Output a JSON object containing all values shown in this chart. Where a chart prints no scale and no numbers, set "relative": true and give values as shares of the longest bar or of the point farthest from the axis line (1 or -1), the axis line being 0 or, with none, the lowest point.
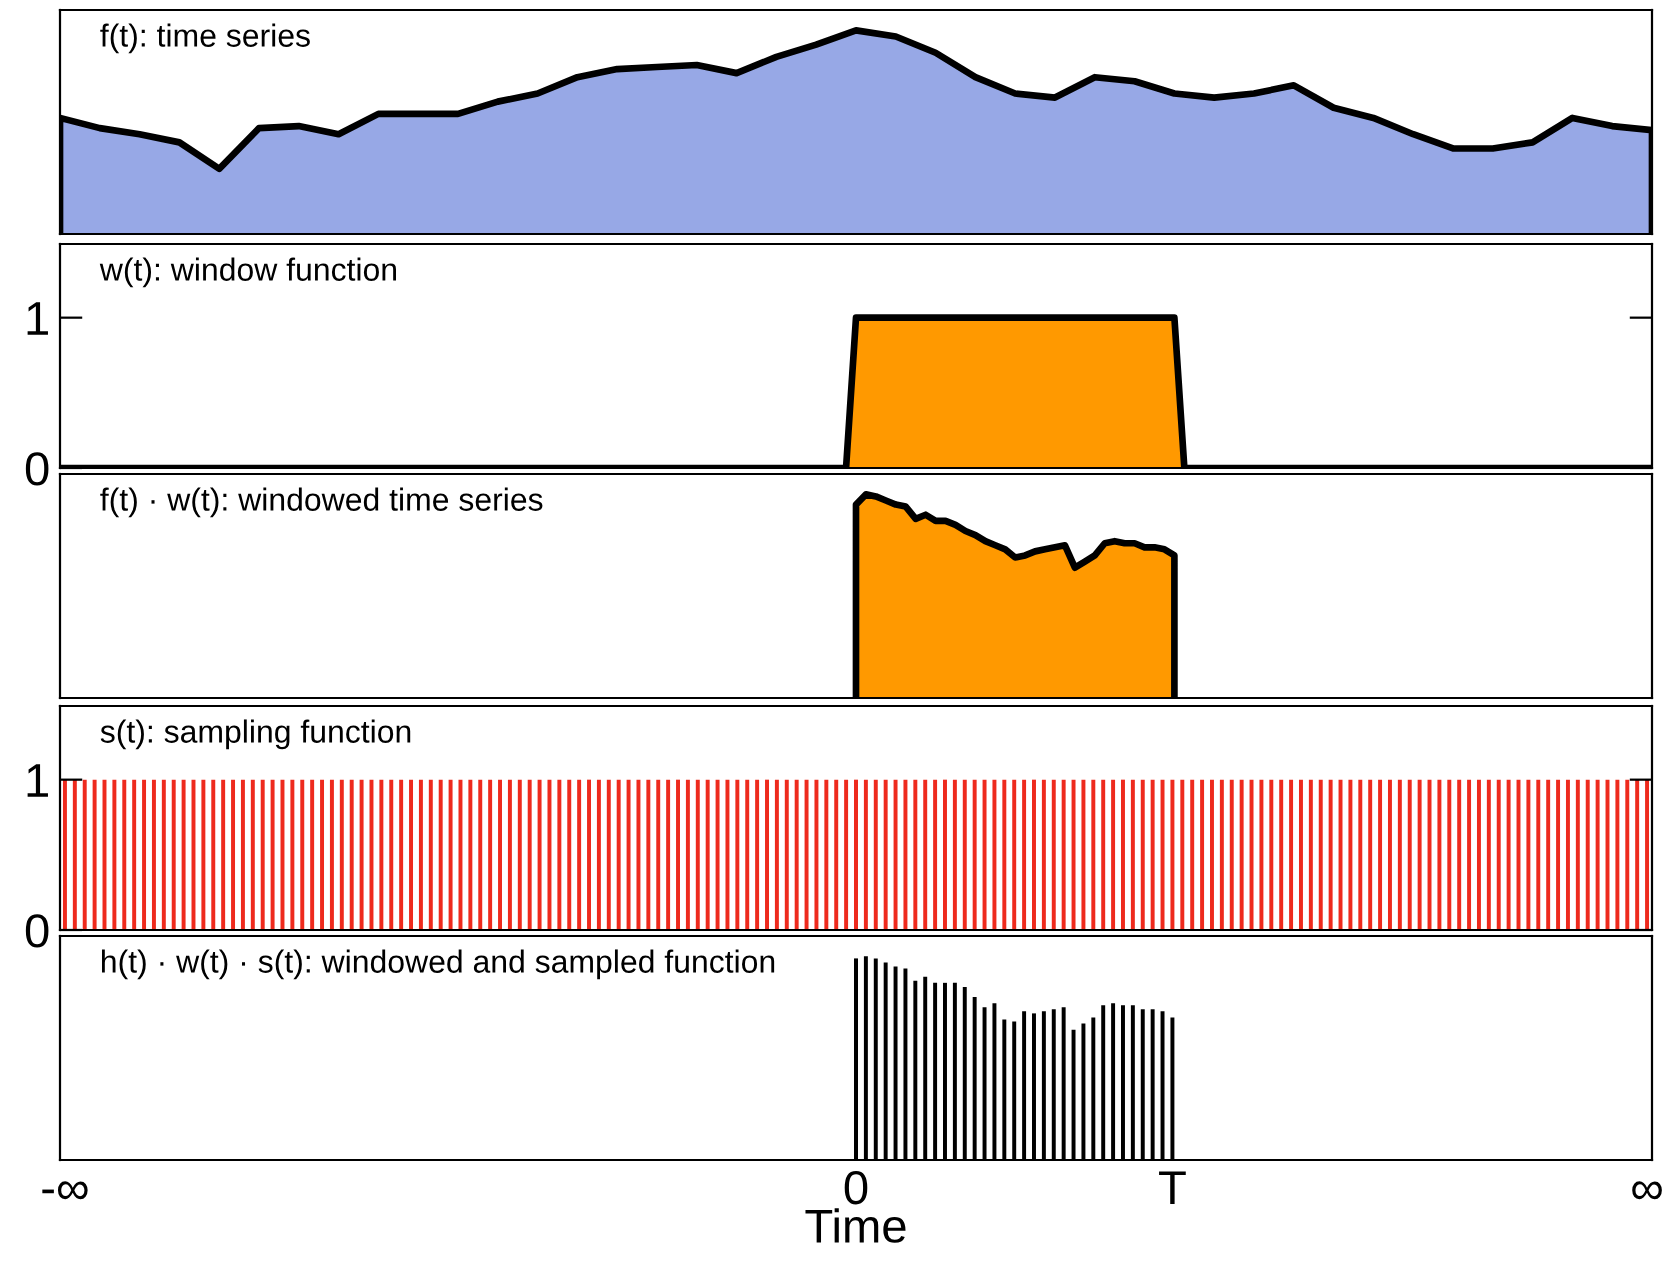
{
  "chart_data": [
    {
      "type": "area",
      "title": "f(t): time series",
      "relative": true,
      "tick_labels": false,
      "categories": [
        null,
        null,
        null,
        null,
        null,
        null,
        null,
        null,
        null,
        null,
        null,
        null,
        null,
        null,
        null,
        null,
        null,
        null,
        null,
        null,
        null,
        null,
        null,
        null,
        null,
        null,
        null,
        null,
        null,
        null,
        null,
        null,
        null,
        null,
        null,
        null,
        null,
        null,
        null,
        null,
        null
      ],
      "series": [
        {
          "color": "#97a8e6",
          "values": [
            0.57,
            0.52,
            0.49,
            0.45,
            0.32,
            0.52,
            0.53,
            0.49,
            0.59,
            0.59,
            0.59,
            0.65,
            0.69,
            0.77,
            0.81,
            0.82,
            0.83,
            0.79,
            0.87,
            0.93,
            1.0,
            0.97,
            0.89,
            0.77,
            0.69,
            0.67,
            0.77,
            0.75,
            0.69,
            0.67,
            0.69,
            0.73,
            0.62,
            0.57,
            0.49,
            0.42,
            0.42,
            0.45,
            0.57,
            0.53,
            0.51
          ]
        }
      ]
    },
    {
      "type": "area",
      "title": "w(t): window function",
      "tick_labels": "y",
      "ylim": [
        0,
        1.49
      ],
      "yticks": [
        0,
        1
      ],
      "categories": [
        null,
        null,
        null,
        null,
        null,
        null,
        null,
        null,
        null,
        null,
        null,
        null,
        null,
        null,
        null,
        null,
        null,
        null,
        null,
        null,
        null,
        null,
        null,
        null,
        null,
        null,
        null,
        null,
        null,
        null,
        null,
        null,
        null,
        null,
        null,
        null,
        null,
        null,
        null,
        null,
        null,
        null,
        null,
        null,
        null,
        null,
        null,
        null,
        null,
        null,
        null,
        null,
        null,
        null,
        null,
        null,
        null,
        null,
        null,
        null,
        null,
        null,
        null,
        null,
        null,
        null,
        null,
        null,
        null,
        null,
        null,
        null,
        null,
        null,
        null,
        null,
        null,
        null,
        null,
        null,
        null,
        null,
        null,
        null,
        null,
        null,
        null,
        null,
        null,
        null,
        null,
        null,
        null,
        null,
        null,
        null,
        null,
        null,
        null,
        null,
        null,
        null,
        null,
        null,
        null,
        null,
        null,
        null,
        null,
        null,
        null,
        null,
        null,
        null,
        null,
        null,
        null,
        null,
        null,
        null,
        null,
        null,
        null,
        null,
        null,
        null,
        null,
        null,
        null,
        null,
        null,
        null,
        null,
        null,
        null,
        null,
        null,
        null,
        null,
        null,
        null,
        null,
        null,
        null,
        null,
        null,
        null,
        null,
        null,
        null,
        null,
        null,
        null,
        null,
        null,
        null,
        null,
        null,
        null,
        null,
        null
      ],
      "series": [
        {
          "color": "#ff9900",
          "values": [
            0,
            0,
            0,
            0,
            0,
            0,
            0,
            0,
            0,
            0,
            0,
            0,
            0,
            0,
            0,
            0,
            0,
            0,
            0,
            0,
            0,
            0,
            0,
            0,
            0,
            0,
            0,
            0,
            0,
            0,
            0,
            0,
            0,
            0,
            0,
            0,
            0,
            0,
            0,
            0,
            0,
            0,
            0,
            0,
            0,
            0,
            0,
            0,
            0,
            0,
            0,
            0,
            0,
            0,
            0,
            0,
            0,
            0,
            0,
            0,
            0,
            0,
            0,
            0,
            0,
            0,
            0,
            0,
            0,
            0,
            0,
            0,
            0,
            0,
            0,
            0,
            0,
            0,
            0,
            0,
            1,
            1,
            1,
            1,
            1,
            1,
            1,
            1,
            1,
            1,
            1,
            1,
            1,
            1,
            1,
            1,
            1,
            1,
            1,
            1,
            1,
            1,
            1,
            1,
            1,
            1,
            1,
            1,
            1,
            1,
            1,
            1,
            1,
            0,
            0,
            0,
            0,
            0,
            0,
            0,
            0,
            0,
            0,
            0,
            0,
            0,
            0,
            0,
            0,
            0,
            0,
            0,
            0,
            0,
            0,
            0,
            0,
            0,
            0,
            0,
            0,
            0,
            0,
            0,
            0,
            0,
            0,
            0,
            0,
            0,
            0,
            0,
            0,
            0,
            0,
            0,
            0,
            0,
            0,
            0,
            0
          ]
        }
      ]
    },
    {
      "type": "area",
      "title": "f(t) · w(t): windowed time series",
      "relative": true,
      "tick_labels": false,
      "categories": [
        null,
        null,
        null,
        null,
        null,
        null,
        null,
        null,
        null,
        null,
        null,
        null,
        null,
        null,
        null,
        null,
        null,
        null,
        null,
        null,
        null,
        null,
        null,
        null,
        null,
        null,
        null,
        null,
        null,
        null,
        null,
        null,
        null,
        null,
        null,
        null,
        null,
        null,
        null,
        null,
        null,
        null,
        null,
        null,
        null,
        null,
        null,
        null,
        null,
        null,
        null,
        null,
        null,
        null,
        null,
        null,
        null,
        null,
        null,
        null,
        null,
        null,
        null,
        null,
        null,
        null,
        null,
        null,
        null,
        null,
        null,
        null,
        null,
        null,
        null,
        null,
        null,
        null,
        null,
        null,
        null,
        null,
        null,
        null,
        null,
        null,
        null,
        null,
        null,
        null,
        null,
        null,
        null,
        null,
        null,
        null,
        null,
        null,
        null,
        null,
        null,
        null,
        null,
        null,
        null,
        null,
        null,
        null,
        null,
        null,
        null,
        null,
        null,
        null,
        null,
        null,
        null,
        null,
        null,
        null,
        null,
        null,
        null,
        null,
        null,
        null,
        null,
        null,
        null,
        null,
        null,
        null,
        null,
        null,
        null,
        null,
        null,
        null,
        null,
        null,
        null,
        null,
        null,
        null,
        null,
        null,
        null,
        null,
        null,
        null,
        null,
        null,
        null,
        null,
        null,
        null,
        null,
        null,
        null,
        null,
        null
      ],
      "series": [
        {
          "color": "#ff9900",
          "values": [
            null,
            null,
            null,
            null,
            null,
            null,
            null,
            null,
            null,
            null,
            null,
            null,
            null,
            null,
            null,
            null,
            null,
            null,
            null,
            null,
            null,
            null,
            null,
            null,
            null,
            null,
            null,
            null,
            null,
            null,
            null,
            null,
            null,
            null,
            null,
            null,
            null,
            null,
            null,
            null,
            null,
            null,
            null,
            null,
            null,
            null,
            null,
            null,
            null,
            null,
            null,
            null,
            null,
            null,
            null,
            null,
            null,
            null,
            null,
            null,
            null,
            null,
            null,
            null,
            null,
            null,
            null,
            null,
            null,
            null,
            null,
            null,
            null,
            null,
            null,
            null,
            null,
            null,
            null,
            null,
            0.95,
            1,
            0.99,
            0.97,
            0.95,
            0.94,
            0.88,
            0.9,
            0.87,
            0.87,
            0.85,
            0.82,
            0.8,
            0.77,
            0.75,
            0.73,
            0.69,
            0.7,
            0.72,
            0.73,
            0.74,
            0.75,
            0.64,
            0.67,
            0.7,
            0.76,
            0.77,
            0.76,
            0.76,
            0.74,
            0.74,
            0.73,
            0.7,
            null,
            null,
            null,
            null,
            null,
            null,
            null,
            null,
            null,
            null,
            null,
            null,
            null,
            null,
            null,
            null,
            null,
            null,
            null,
            null,
            null,
            null,
            null,
            null,
            null,
            null,
            null,
            null,
            null,
            null,
            null,
            null,
            null,
            null,
            null,
            null,
            null,
            null,
            null,
            null,
            null,
            null,
            null,
            null,
            null,
            null,
            null,
            null
          ]
        }
      ]
    },
    {
      "type": "bar",
      "title": "s(t): sampling function",
      "tick_labels": "y",
      "ylim": [
        0,
        1.49
      ],
      "yticks": [
        0,
        1
      ],
      "categories": [
        null,
        null,
        null,
        null,
        null,
        null,
        null,
        null,
        null,
        null,
        null,
        null,
        null,
        null,
        null,
        null,
        null,
        null,
        null,
        null,
        null,
        null,
        null,
        null,
        null,
        null,
        null,
        null,
        null,
        null,
        null,
        null,
        null,
        null,
        null,
        null,
        null,
        null,
        null,
        null,
        null,
        null,
        null,
        null,
        null,
        null,
        null,
        null,
        null,
        null,
        null,
        null,
        null,
        null,
        null,
        null,
        null,
        null,
        null,
        null,
        null,
        null,
        null,
        null,
        null,
        null,
        null,
        null,
        null,
        null,
        null,
        null,
        null,
        null,
        null,
        null,
        null,
        null,
        null,
        null,
        null,
        null,
        null,
        null,
        null,
        null,
        null,
        null,
        null,
        null,
        null,
        null,
        null,
        null,
        null,
        null,
        null,
        null,
        null,
        null,
        null,
        null,
        null,
        null,
        null,
        null,
        null,
        null,
        null,
        null,
        null,
        null,
        null,
        null,
        null,
        null,
        null,
        null,
        null,
        null,
        null,
        null,
        null,
        null,
        null,
        null,
        null,
        null,
        null,
        null,
        null,
        null,
        null,
        null,
        null,
        null,
        null,
        null,
        null,
        null,
        null,
        null,
        null,
        null,
        null,
        null,
        null,
        null,
        null,
        null,
        null,
        null,
        null,
        null,
        null,
        null,
        null,
        null,
        null,
        null,
        null
      ],
      "series": [
        {
          "color": "#ee2a1d",
          "values": [
            1,
            1,
            1,
            1,
            1,
            1,
            1,
            1,
            1,
            1,
            1,
            1,
            1,
            1,
            1,
            1,
            1,
            1,
            1,
            1,
            1,
            1,
            1,
            1,
            1,
            1,
            1,
            1,
            1,
            1,
            1,
            1,
            1,
            1,
            1,
            1,
            1,
            1,
            1,
            1,
            1,
            1,
            1,
            1,
            1,
            1,
            1,
            1,
            1,
            1,
            1,
            1,
            1,
            1,
            1,
            1,
            1,
            1,
            1,
            1,
            1,
            1,
            1,
            1,
            1,
            1,
            1,
            1,
            1,
            1,
            1,
            1,
            1,
            1,
            1,
            1,
            1,
            1,
            1,
            1,
            1,
            1,
            1,
            1,
            1,
            1,
            1,
            1,
            1,
            1,
            1,
            1,
            1,
            1,
            1,
            1,
            1,
            1,
            1,
            1,
            1,
            1,
            1,
            1,
            1,
            1,
            1,
            1,
            1,
            1,
            1,
            1,
            1,
            1,
            1,
            1,
            1,
            1,
            1,
            1,
            1,
            1,
            1,
            1,
            1,
            1,
            1,
            1,
            1,
            1,
            1,
            1,
            1,
            1,
            1,
            1,
            1,
            1,
            1,
            1,
            1,
            1,
            1,
            1,
            1,
            1,
            1,
            1,
            1,
            1,
            1,
            1,
            1,
            1,
            1,
            1,
            1,
            1,
            1,
            1,
            1
          ]
        }
      ]
    },
    {
      "type": "bar",
      "title": "h(t) · w(t) · s(t): windowed and sampled function",
      "relative": true,
      "tick_labels": "x",
      "xlabel": "Time",
      "categories": [
        "-∞",
        null,
        null,
        null,
        null,
        null,
        null,
        null,
        null,
        null,
        null,
        null,
        null,
        null,
        null,
        null,
        null,
        null,
        null,
        null,
        null,
        null,
        null,
        null,
        null,
        null,
        null,
        null,
        null,
        null,
        null,
        null,
        null,
        null,
        null,
        null,
        null,
        null,
        null,
        null,
        null,
        null,
        null,
        null,
        null,
        null,
        null,
        null,
        null,
        null,
        null,
        null,
        null,
        null,
        null,
        null,
        null,
        null,
        null,
        null,
        null,
        null,
        null,
        null,
        null,
        null,
        null,
        null,
        null,
        null,
        null,
        null,
        null,
        null,
        null,
        null,
        null,
        null,
        null,
        null,
        "0",
        null,
        null,
        null,
        null,
        null,
        null,
        null,
        null,
        null,
        null,
        null,
        null,
        null,
        null,
        null,
        null,
        null,
        null,
        null,
        null,
        null,
        null,
        null,
        null,
        null,
        null,
        null,
        null,
        null,
        null,
        null,
        "T",
        null,
        null,
        null,
        null,
        null,
        null,
        null,
        null,
        null,
        null,
        null,
        null,
        null,
        null,
        null,
        null,
        null,
        null,
        null,
        null,
        null,
        null,
        null,
        null,
        null,
        null,
        null,
        null,
        null,
        null,
        null,
        null,
        null,
        null,
        null,
        null,
        null,
        null,
        null,
        null,
        null,
        null,
        null,
        null,
        null,
        null,
        null,
        "∞"
      ],
      "series": [
        {
          "color": "#000000",
          "values": [
            null,
            null,
            null,
            null,
            null,
            null,
            null,
            null,
            null,
            null,
            null,
            null,
            null,
            null,
            null,
            null,
            null,
            null,
            null,
            null,
            null,
            null,
            null,
            null,
            null,
            null,
            null,
            null,
            null,
            null,
            null,
            null,
            null,
            null,
            null,
            null,
            null,
            null,
            null,
            null,
            null,
            null,
            null,
            null,
            null,
            null,
            null,
            null,
            null,
            null,
            null,
            null,
            null,
            null,
            null,
            null,
            null,
            null,
            null,
            null,
            null,
            null,
            null,
            null,
            null,
            null,
            null,
            null,
            null,
            null,
            null,
            null,
            null,
            null,
            null,
            null,
            null,
            null,
            null,
            null,
            0.99,
            1,
            0.99,
            0.97,
            0.95,
            0.94,
            0.88,
            0.9,
            0.87,
            0.87,
            0.87,
            0.85,
            0.8,
            0.75,
            0.77,
            0.69,
            0.68,
            0.73,
            0.72,
            0.73,
            0.74,
            0.75,
            0.64,
            0.67,
            0.7,
            0.76,
            0.77,
            0.76,
            0.76,
            0.74,
            0.74,
            0.73,
            0.7,
            null,
            null,
            null,
            null,
            null,
            null,
            null,
            null,
            null,
            null,
            null,
            null,
            null,
            null,
            null,
            null,
            null,
            null,
            null,
            null,
            null,
            null,
            null,
            null,
            null,
            null,
            null,
            null,
            null,
            null,
            null,
            null,
            null,
            null,
            null,
            null,
            null,
            null,
            null,
            null,
            null,
            null,
            null,
            null,
            null,
            null,
            null,
            null
          ]
        }
      ]
    }
  ]
}
